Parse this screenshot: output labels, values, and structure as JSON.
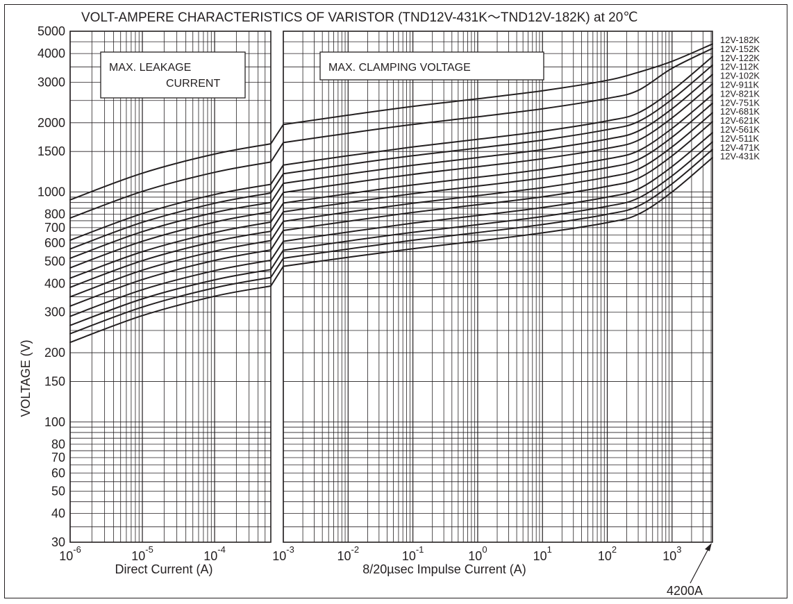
{
  "chart_data": {
    "type": "line",
    "title": "VOLT-AMPERE  CHARACTERISTICS OF VARISTOR (TND12V-431K〜TND12V-182K)  at 20℃",
    "ylabel": "VOLTAGE  (V)",
    "y_scale": "log",
    "ylim": [
      30,
      5000
    ],
    "y_ticks": [
      {
        "value": 5000,
        "label": "5000"
      },
      {
        "value": 4000,
        "label": "4000"
      },
      {
        "value": 3000,
        "label": "3000"
      },
      {
        "value": 2000,
        "label": "2000"
      },
      {
        "value": 1500,
        "label": "1500"
      },
      {
        "value": 1000,
        "label": "1000"
      },
      {
        "value": 800,
        "label": "800"
      },
      {
        "value": 700,
        "label": "700"
      },
      {
        "value": 600,
        "label": "600"
      },
      {
        "value": 500,
        "label": "500"
      },
      {
        "value": 400,
        "label": "400"
      },
      {
        "value": 300,
        "label": "300"
      },
      {
        "value": 200,
        "label": "200"
      },
      {
        "value": 150,
        "label": "150"
      },
      {
        "value": 100,
        "label": "100"
      },
      {
        "value": 80,
        "label": "80"
      },
      {
        "value": 70,
        "label": "70"
      },
      {
        "value": 60,
        "label": "60"
      },
      {
        "value": 50,
        "label": "50"
      },
      {
        "value": 40,
        "label": "40"
      },
      {
        "value": 30,
        "label": "30"
      }
    ],
    "panels": [
      {
        "label": "Direct Current (A)",
        "box_label": "MAX.     LEAKAGE\nCURRENT",
        "x_scale": "log",
        "xlim": [
          1e-06,
          0.0006
        ],
        "x_ticks": [
          {
            "value": 1e-06,
            "base": "10",
            "exp": "-6"
          },
          {
            "value": 1e-05,
            "base": "10",
            "exp": "-5"
          },
          {
            "value": 0.0001,
            "base": "10",
            "exp": "-4"
          }
        ]
      },
      {
        "label": "8/20µsec  Impulse  Current (A)",
        "box_label": "MAX.  CLAMPING  VOLTAGE",
        "x_scale": "log",
        "xlim": [
          0.001,
          4200
        ],
        "x_ticks": [
          {
            "value": 0.001,
            "base": "10",
            "exp": "-3"
          },
          {
            "value": 0.01,
            "base": "10",
            "exp": "-2"
          },
          {
            "value": 0.1,
            "base": "10",
            "exp": "-1"
          },
          {
            "value": 1,
            "base": "10",
            "exp": "0"
          },
          {
            "value": 10,
            "base": "10",
            "exp": "1"
          },
          {
            "value": 100,
            "base": "10",
            "exp": "2"
          },
          {
            "value": 1000,
            "base": "10",
            "exp": "3"
          }
        ]
      }
    ],
    "annotation": "4200A",
    "leakage_x": [
      1e-06,
      1e-05,
      0.0001,
      0.0006
    ],
    "clamp_x": [
      0.001,
      0.01,
      0.1,
      1,
      10,
      100,
      300,
      1000,
      4200
    ],
    "series": [
      {
        "name": "12V-431K",
        "leakage": [
          222,
          290,
          352,
          390
        ],
        "clamp": [
          475,
          520,
          567,
          612,
          664,
          736,
          800,
          1000,
          1410
        ]
      },
      {
        "name": "12V-471K",
        "leakage": [
          242,
          316,
          383,
          425
        ],
        "clamp": [
          515,
          565,
          617,
          666,
          722,
          800,
          868,
          1085,
          1530
        ]
      },
      {
        "name": "12V-511K",
        "leakage": [
          263,
          343,
          415,
          460
        ],
        "clamp": [
          558,
          612,
          668,
          721,
          782,
          867,
          940,
          1175,
          1650
        ]
      },
      {
        "name": "12V-561K",
        "leakage": [
          288,
          376,
          455,
          505
        ],
        "clamp": [
          610,
          670,
          732,
          790,
          856,
          950,
          1030,
          1290,
          1810
        ]
      },
      {
        "name": "12V-621K",
        "leakage": [
          319,
          416,
          504,
          560
        ],
        "clamp": [
          680,
          746,
          815,
          880,
          953,
          1058,
          1147,
          1435,
          2020
        ]
      },
      {
        "name": "12V-681K",
        "leakage": [
          350,
          457,
          553,
          615
        ],
        "clamp": [
          745,
          818,
          893,
          964,
          1045,
          1160,
          1257,
          1570,
          2210
        ]
      },
      {
        "name": "12V-751K",
        "leakage": [
          385,
          503,
          609,
          675
        ],
        "clamp": [
          820,
          900,
          983,
          1061,
          1150,
          1276,
          1383,
          1730,
          2430
        ]
      },
      {
        "name": "12V-821K",
        "leakage": [
          422,
          550,
          666,
          740
        ],
        "clamp": [
          895,
          983,
          1073,
          1158,
          1255,
          1393,
          1510,
          1890,
          2650
        ]
      },
      {
        "name": "12V-911K",
        "leakage": [
          468,
          610,
          740,
          820
        ],
        "clamp": [
          995,
          1092,
          1193,
          1288,
          1395,
          1548,
          1678,
          2100,
          2950
        ]
      },
      {
        "name": "12V-102K",
        "leakage": [
          515,
          672,
          814,
          900
        ],
        "clamp": [
          1090,
          1197,
          1307,
          1411,
          1529,
          1697,
          1840,
          2300,
          3240
        ]
      },
      {
        "name": "12V-112K",
        "leakage": [
          565,
          738,
          893,
          990
        ],
        "clamp": [
          1200,
          1317,
          1438,
          1552,
          1682,
          1867,
          2023,
          2530,
          3560
        ]
      },
      {
        "name": "12V-122K",
        "leakage": [
          617,
          805,
          975,
          1080
        ],
        "clamp": [
          1310,
          1438,
          1570,
          1695,
          1837,
          2038,
          2208,
          2760,
          3880
        ]
      },
      {
        "name": "12V-152K",
        "leakage": [
          770,
          1006,
          1218,
          1350
        ],
        "clamp": [
          1640,
          1800,
          1966,
          2122,
          2300,
          2552,
          2766,
          3450,
          4210
        ]
      },
      {
        "name": "12V-182K",
        "leakage": [
          925,
          1208,
          1462,
          1620
        ],
        "clamp": [
          1965,
          2157,
          2356,
          2543,
          2756,
          3058,
          3314,
          3700,
          4400
        ]
      }
    ]
  }
}
